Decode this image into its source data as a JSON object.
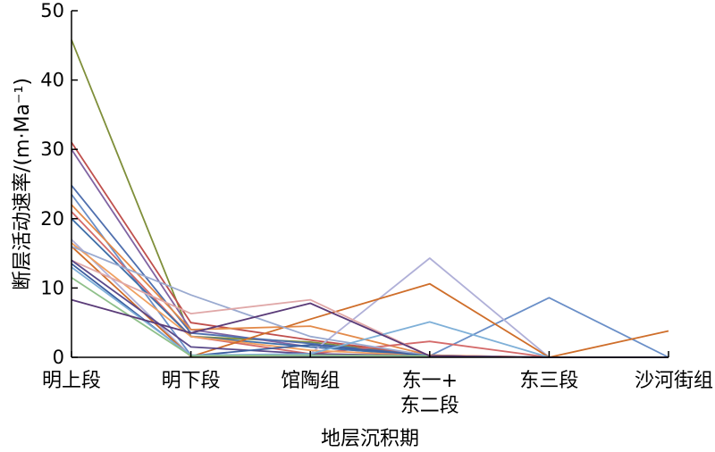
{
  "chart_data": {
    "type": "line",
    "xlabel": "地层沉积期",
    "ylabel": "断层活动速率/(m·Ma⁻¹)",
    "categories": [
      "明上段",
      "明下段",
      "馆陶组",
      "东一+\n东二段",
      "东三段",
      "沙河街组"
    ],
    "ylim": [
      0,
      50
    ],
    "yticks": [
      0,
      10,
      20,
      30,
      40,
      50
    ],
    "grid": false,
    "legend": "none",
    "series": [
      {
        "color": "#7f8f3a",
        "values": [
          45.8,
          3.0,
          2.2,
          0.2,
          0.0,
          0.0
        ]
      },
      {
        "color": "#c0504d",
        "values": [
          31.0,
          5.0,
          2.5,
          0.3,
          0.0,
          0.0
        ]
      },
      {
        "color": "#8064a2",
        "values": [
          30.0,
          4.0,
          1.5,
          0.2,
          0.0,
          0.0
        ]
      },
      {
        "color": "#4f6fae",
        "values": [
          24.8,
          3.5,
          2.0,
          0.2,
          0.0,
          0.0
        ]
      },
      {
        "color": "#6a8fc8",
        "values": [
          23.5,
          0.3,
          0.2,
          0.2,
          8.6,
          0.0
        ]
      },
      {
        "color": "#e38a4a",
        "values": [
          22.0,
          4.0,
          4.5,
          0.3,
          0.0,
          0.0
        ]
      },
      {
        "color": "#d46a6a",
        "values": [
          21.0,
          3.0,
          0.5,
          2.3,
          0.0,
          0.0
        ]
      },
      {
        "color": "#3f6fa8",
        "values": [
          20.0,
          3.0,
          1.5,
          0.2,
          0.0,
          0.0
        ]
      },
      {
        "color": "#b0b0d8",
        "values": [
          17.0,
          0.2,
          0.5,
          14.3,
          0.0,
          0.0
        ]
      },
      {
        "color": "#f0a060",
        "values": [
          16.5,
          3.0,
          1.0,
          0.2,
          0.0,
          0.0
        ]
      },
      {
        "color": "#cf6e2a",
        "values": [
          16.0,
          0.1,
          5.5,
          10.6,
          0.0,
          3.8
        ]
      },
      {
        "color": "#9aaad0",
        "values": [
          16.0,
          9.0,
          3.0,
          0.2,
          0.0,
          0.0
        ]
      },
      {
        "color": "#e0a8a8",
        "values": [
          14.0,
          6.3,
          8.3,
          0.2,
          0.0,
          0.0
        ]
      },
      {
        "color": "#5b4a8a",
        "values": [
          14.0,
          1.5,
          0.5,
          0.2,
          0.0,
          0.0
        ]
      },
      {
        "color": "#3c5fa0",
        "values": [
          13.5,
          0.2,
          1.8,
          0.2,
          0.0,
          0.0
        ]
      },
      {
        "color": "#7fb0d8",
        "values": [
          13.0,
          0.3,
          0.5,
          5.1,
          0.0,
          0.0
        ]
      },
      {
        "color": "#8fc08a",
        "values": [
          11.5,
          0.2,
          0.3,
          0.2,
          0.0,
          0.0
        ]
      },
      {
        "color": "#5a3b78",
        "values": [
          8.3,
          3.5,
          7.8,
          0.2,
          0.0,
          0.0
        ]
      }
    ]
  }
}
